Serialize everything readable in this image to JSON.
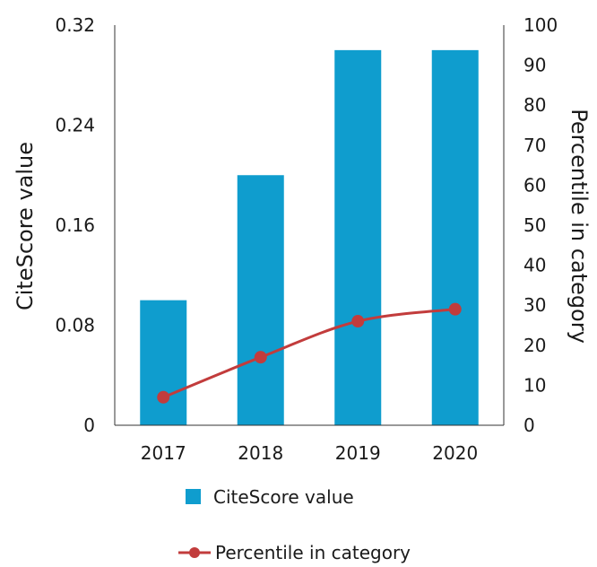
{
  "chart_data": {
    "type": "bar",
    "categories": [
      "2017",
      "2018",
      "2019",
      "2020"
    ],
    "series": [
      {
        "name": "CiteScore value",
        "type": "bar",
        "axis": "left",
        "values": [
          0.1,
          0.2,
          0.3,
          0.3
        ]
      },
      {
        "name": "Percentile in category",
        "type": "line",
        "axis": "right",
        "values": [
          7,
          17,
          26,
          29
        ]
      }
    ],
    "ylabel": "CiteScore value",
    "y2label": "Percentile in category",
    "ylim": [
      0,
      0.32
    ],
    "y2lim": [
      0,
      100
    ],
    "yticks": [
      "0",
      "0.08",
      "0.16",
      "0.24",
      "0.32"
    ],
    "y2ticks": [
      "0",
      "10",
      "20",
      "30",
      "40",
      "50",
      "60",
      "70",
      "80",
      "90",
      "100"
    ],
    "grid": false,
    "legend_position": "bottom",
    "colors": {
      "bar": "#0f9dce",
      "line": "#c23c3c",
      "axis": "#333333"
    }
  }
}
